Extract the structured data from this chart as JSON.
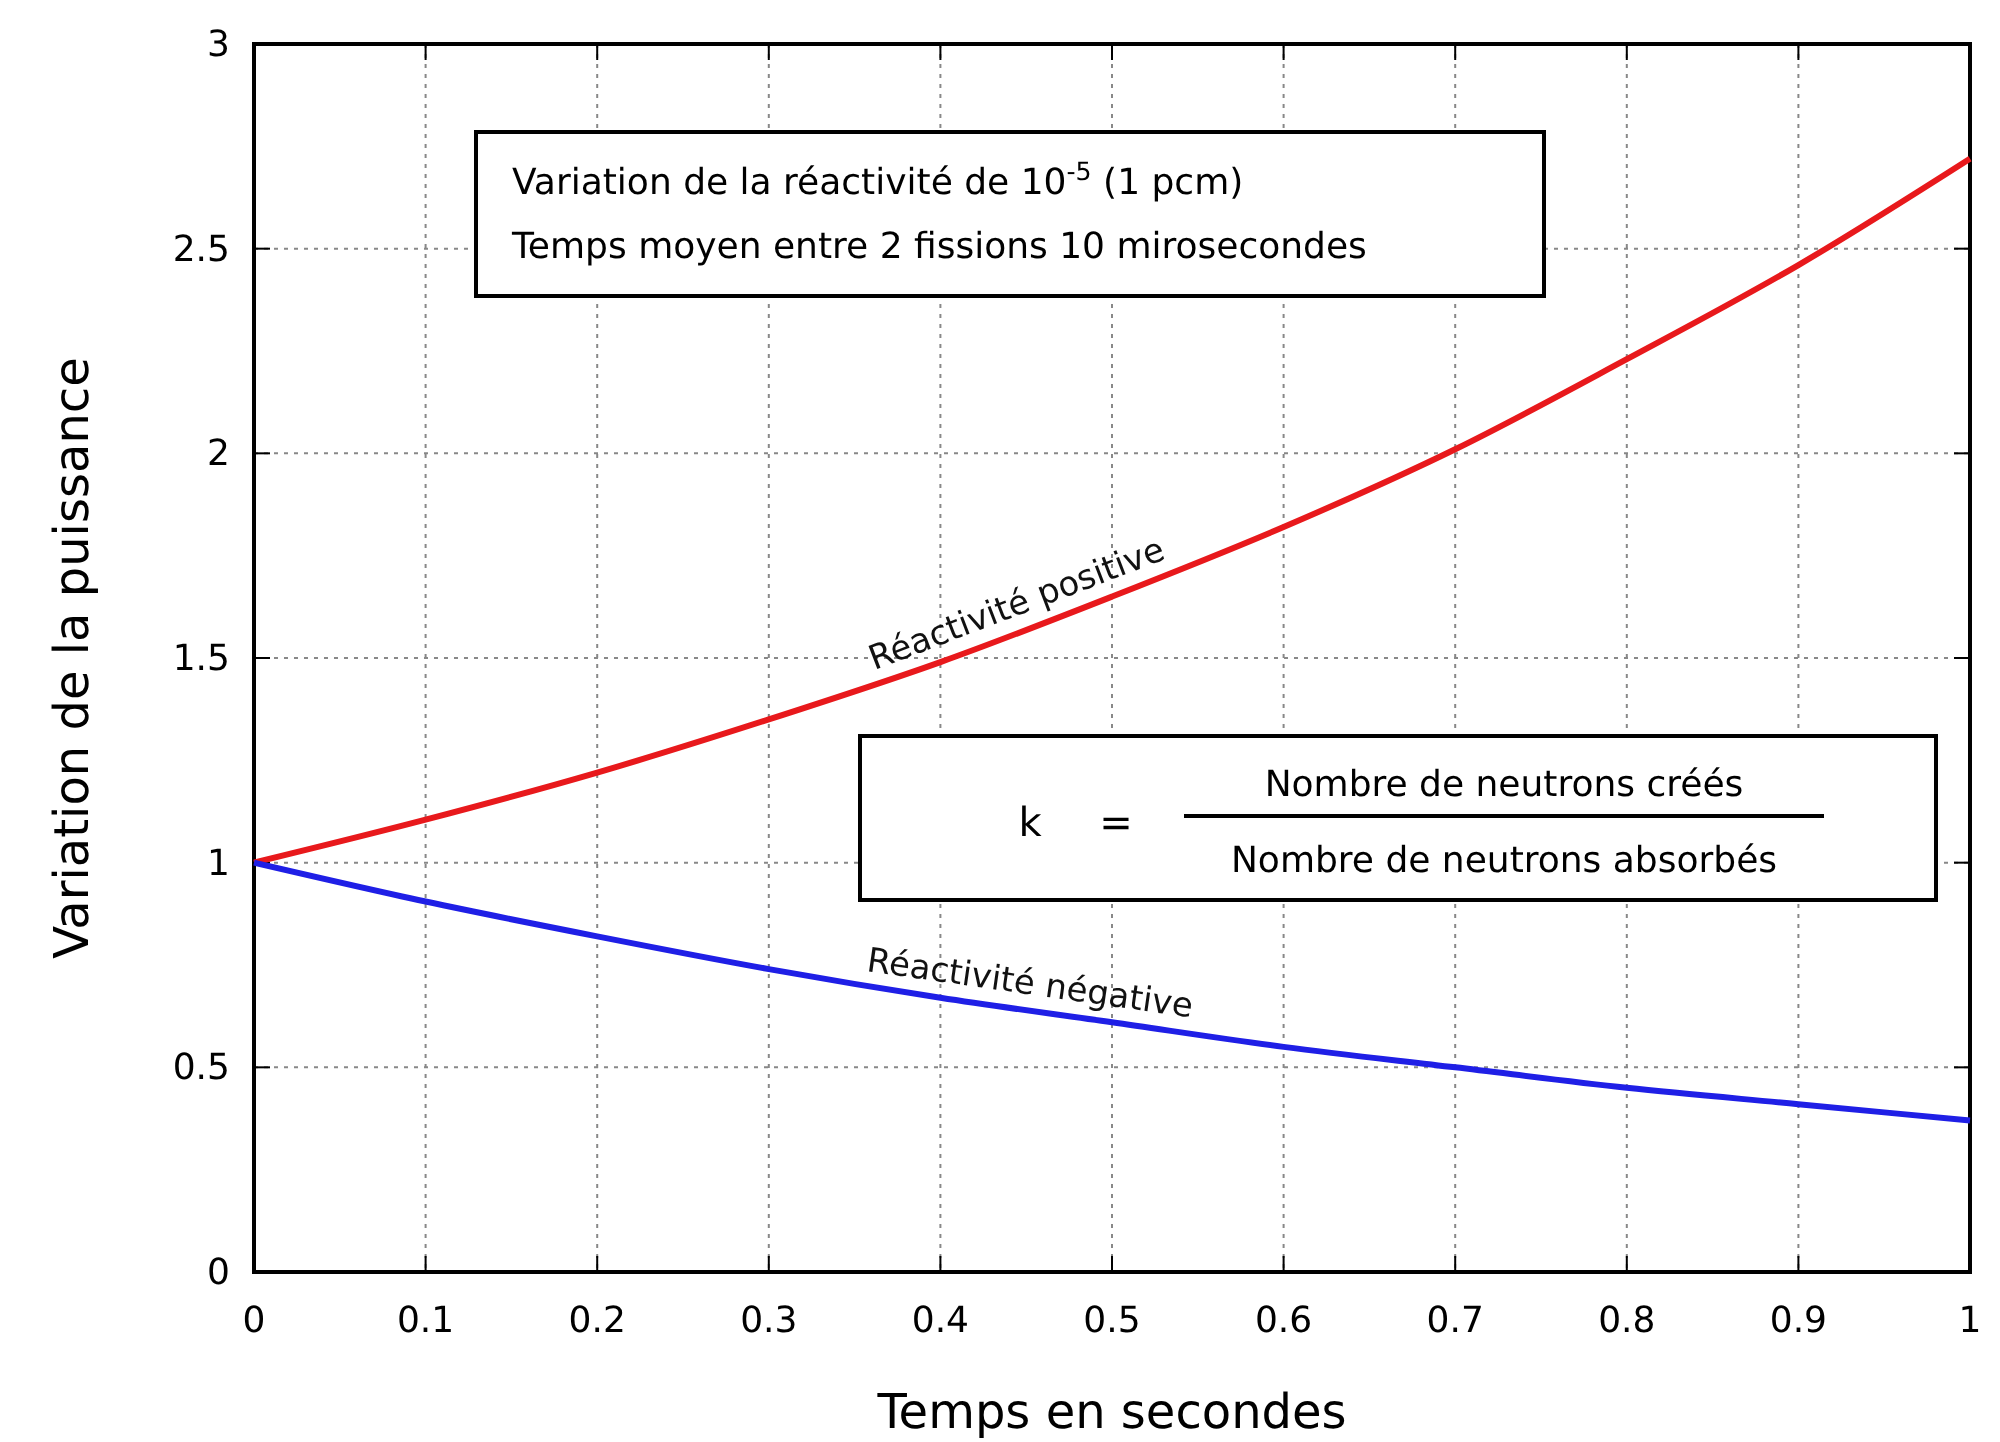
{
  "chart_data": {
    "type": "line",
    "xlabel": "Temps en secondes",
    "ylabel": "Variation de la puissance",
    "x": [
      0,
      0.1,
      0.2,
      0.3,
      0.4,
      0.5,
      0.6,
      0.7,
      0.8,
      0.9,
      1
    ],
    "series": [
      {
        "name": "Réactivité positive",
        "color": "#e8191c",
        "values": [
          1,
          1.105,
          1.22,
          1.35,
          1.49,
          1.65,
          1.82,
          2.01,
          2.23,
          2.46,
          2.72
        ]
      },
      {
        "name": "Réactivité négative",
        "color": "#1f1fe6",
        "values": [
          1,
          0.905,
          0.82,
          0.74,
          0.67,
          0.61,
          0.55,
          0.5,
          0.45,
          0.41,
          0.37
        ]
      }
    ],
    "xlim": [
      0,
      1
    ],
    "xticks": [
      0,
      0.1,
      0.2,
      0.3,
      0.4,
      0.5,
      0.6,
      0.7,
      0.8,
      0.9,
      1
    ],
    "ylim": [
      0,
      3
    ],
    "yticks": [
      0,
      0.5,
      1,
      1.5,
      2,
      2.5,
      3
    ],
    "grid": true,
    "marker": "none",
    "line_style": "solid",
    "annotations": [
      "Variation de la réactivité de 10$^{-5}$ (1 pcm)",
      "Temps moyen entre 2 fissions 10 mirosecondes",
      "k",
      "=",
      "Nombre de neutrons créés",
      "Nombre de neutrons absorbés"
    ]
  }
}
